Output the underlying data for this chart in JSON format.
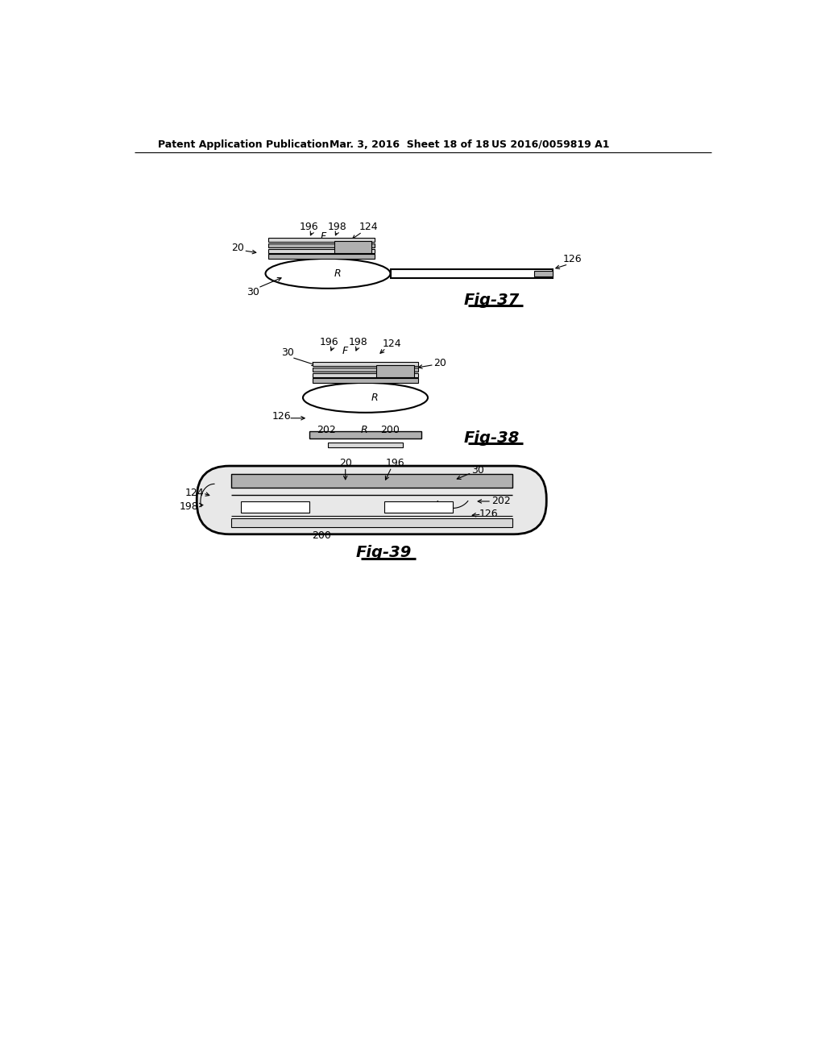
{
  "bg_color": "#ffffff",
  "header_left": "Patent Application Publication",
  "header_mid": "Mar. 3, 2016  Sheet 18 of 18",
  "header_right": "US 2016/0059819 A1",
  "fig37_label": "Fig-37",
  "fig38_label": "Fig-38",
  "fig39_label": "Fig-39",
  "line_color": "#000000",
  "gray_light": "#d8d8d8",
  "gray_mid": "#b0b0b0",
  "gray_dark": "#888888",
  "gray_fill": "#e8e8e8"
}
